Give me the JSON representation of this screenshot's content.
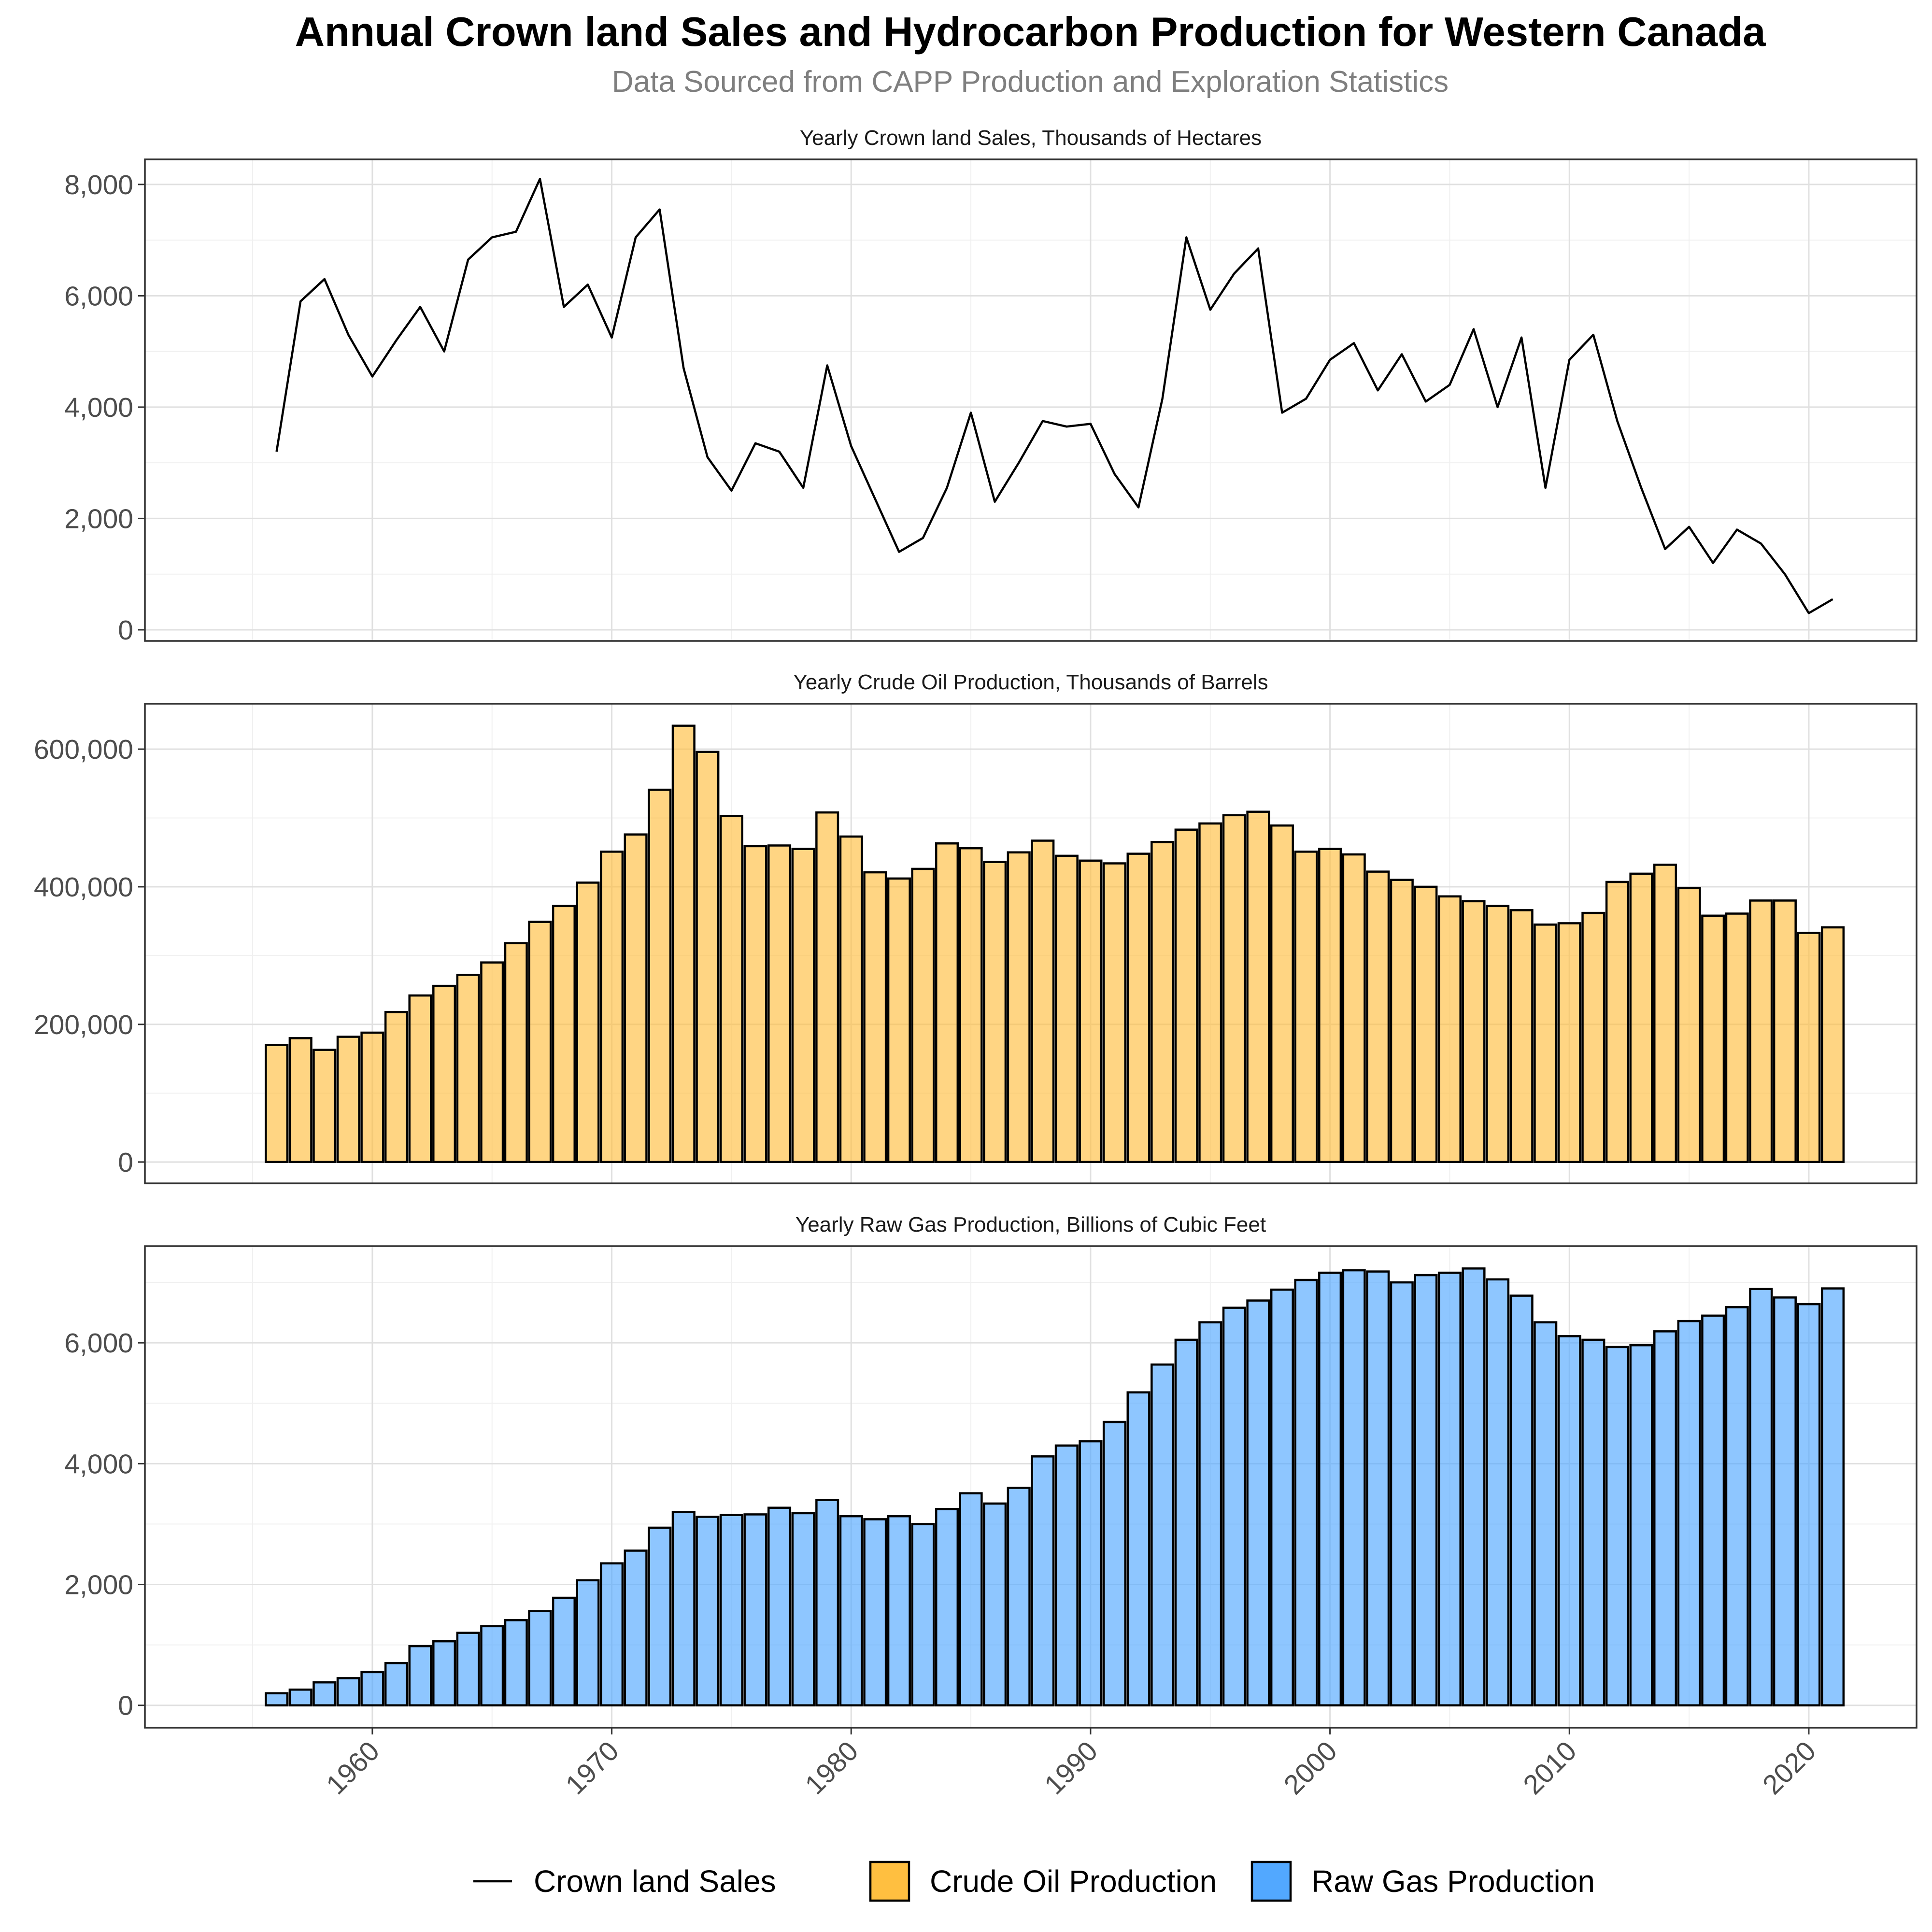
{
  "title": "Annual Crown land Sales and Hydrocarbon Production for Western Canada",
  "subtitle": "Data Sourced from CAPP Production and Exploration Statistics",
  "colors": {
    "oil": "#FFBF40",
    "gas": "#52A8FF",
    "line": "#000000"
  },
  "legend": {
    "position": "bottom",
    "items": [
      {
        "label": "Crown land Sales",
        "kind": "line",
        "color": "#000000"
      },
      {
        "label": "Crude Oil Production",
        "kind": "fill",
        "color": "#FFBF40"
      },
      {
        "label": "Raw Gas Production",
        "kind": "fill",
        "color": "#52A8FF"
      }
    ]
  },
  "chart_data": [
    {
      "type": "line",
      "panel_title": "Yearly Crown land Sales, Thousands of Hectares",
      "series_name": "Crown land Sales",
      "x": [
        1956,
        1957,
        1958,
        1959,
        1960,
        1961,
        1962,
        1963,
        1964,
        1965,
        1966,
        1967,
        1968,
        1969,
        1970,
        1971,
        1972,
        1973,
        1974,
        1975,
        1976,
        1977,
        1978,
        1979,
        1980,
        1981,
        1982,
        1983,
        1984,
        1985,
        1986,
        1987,
        1988,
        1989,
        1990,
        1991,
        1992,
        1993,
        1994,
        1995,
        1996,
        1997,
        1998,
        1999,
        2000,
        2001,
        2002,
        2003,
        2004,
        2005,
        2006,
        2007,
        2008,
        2009,
        2010,
        2011,
        2012,
        2013,
        2014,
        2015,
        2016,
        2017,
        2018,
        2019,
        2020,
        2021
      ],
      "values": [
        3200,
        5900,
        6300,
        5300,
        4550,
        5200,
        5800,
        5000,
        6650,
        7050,
        7150,
        8100,
        5800,
        6200,
        5250,
        7050,
        7550,
        4700,
        3100,
        2500,
        3350,
        3200,
        2550,
        4750,
        3300,
        2350,
        1400,
        1650,
        2550,
        3900,
        2300,
        3000,
        3750,
        3650,
        3700,
        2800,
        2200,
        4150,
        7050,
        5750,
        6400,
        6850,
        3900,
        4150,
        4850,
        5150,
        4300,
        4950,
        4100,
        4400,
        5400,
        4000,
        5250,
        2550,
        4850,
        5300,
        3750,
        2550,
        1450,
        1850,
        1200,
        1800,
        1550,
        1000,
        300,
        550
      ],
      "y_ticks": [
        "0",
        "2,000",
        "4,000",
        "6,000",
        "8,000"
      ],
      "ylim": [
        -200,
        8450
      ],
      "xlim": [
        1950.5,
        2024.5
      ],
      "grid": true
    },
    {
      "type": "bar",
      "panel_title": "Yearly Crude Oil Production, Thousands of Barrels",
      "series_name": "Crude Oil Production",
      "x": [
        1956,
        1957,
        1958,
        1959,
        1960,
        1961,
        1962,
        1963,
        1964,
        1965,
        1966,
        1967,
        1968,
        1969,
        1970,
        1971,
        1972,
        1973,
        1974,
        1975,
        1976,
        1977,
        1978,
        1979,
        1980,
        1981,
        1982,
        1983,
        1984,
        1985,
        1986,
        1987,
        1988,
        1989,
        1990,
        1991,
        1992,
        1993,
        1994,
        1995,
        1996,
        1997,
        1998,
        1999,
        2000,
        2001,
        2002,
        2003,
        2004,
        2005,
        2006,
        2007,
        2008,
        2009,
        2010,
        2011,
        2012,
        2013,
        2014,
        2015,
        2016,
        2017,
        2018,
        2019,
        2020,
        2021
      ],
      "values": [
        170000,
        180000,
        163000,
        182000,
        188000,
        218000,
        242000,
        256000,
        272000,
        290000,
        318000,
        349000,
        372000,
        406000,
        451000,
        476000,
        541000,
        634000,
        596000,
        503000,
        459000,
        460000,
        455000,
        508000,
        473000,
        421000,
        412000,
        426000,
        463000,
        456000,
        436000,
        450000,
        467000,
        445000,
        438000,
        434000,
        448000,
        465000,
        483000,
        492000,
        504000,
        509000,
        489000,
        451000,
        455000,
        447000,
        422000,
        410000,
        400000,
        386000,
        379000,
        372000,
        366000,
        345000,
        347000,
        362000,
        407000,
        419000,
        432000,
        398000,
        358000,
        361000,
        380000,
        380000,
        333000,
        341000
      ],
      "y_ticks": [
        "0",
        "200,000",
        "400,000",
        "600,000"
      ],
      "ylim": [
        -31000,
        666000
      ],
      "xlim": [
        1950.5,
        2024.5
      ],
      "grid": true
    },
    {
      "type": "bar",
      "panel_title": "Yearly Raw Gas Production, Billions of Cubic Feet",
      "series_name": "Raw Gas Production",
      "x": [
        1956,
        1957,
        1958,
        1959,
        1960,
        1961,
        1962,
        1963,
        1964,
        1965,
        1966,
        1967,
        1968,
        1969,
        1970,
        1971,
        1972,
        1973,
        1974,
        1975,
        1976,
        1977,
        1978,
        1979,
        1980,
        1981,
        1982,
        1983,
        1984,
        1985,
        1986,
        1987,
        1988,
        1989,
        1990,
        1991,
        1992,
        1993,
        1994,
        1995,
        1996,
        1997,
        1998,
        1999,
        2000,
        2001,
        2002,
        2003,
        2004,
        2005,
        2006,
        2007,
        2008,
        2009,
        2010,
        2011,
        2012,
        2013,
        2014,
        2015,
        2016,
        2017,
        2018,
        2019,
        2020,
        2021
      ],
      "values": [
        200,
        260,
        380,
        450,
        550,
        700,
        980,
        1060,
        1200,
        1310,
        1410,
        1560,
        1780,
        2070,
        2350,
        2560,
        2940,
        3200,
        3120,
        3150,
        3160,
        3270,
        3180,
        3400,
        3130,
        3080,
        3130,
        3000,
        3250,
        3510,
        3340,
        3600,
        4120,
        4300,
        4370,
        4690,
        5180,
        5640,
        6050,
        6340,
        6580,
        6700,
        6880,
        7040,
        7160,
        7200,
        7180,
        7000,
        7120,
        7160,
        7230,
        7050,
        6780,
        6340,
        6110,
        6050,
        5930,
        5960,
        6190,
        6360,
        6450,
        6590,
        6890,
        6750,
        6640,
        6900
      ],
      "y_ticks": [
        "0",
        "2,000",
        "4,000",
        "6,000"
      ],
      "ylim": [
        -370,
        7600
      ],
      "xlim": [
        1950.5,
        2024.5
      ],
      "grid": true
    }
  ],
  "x_ticks": [
    "1960",
    "1970",
    "1980",
    "1990",
    "2000",
    "2010",
    "2020"
  ]
}
